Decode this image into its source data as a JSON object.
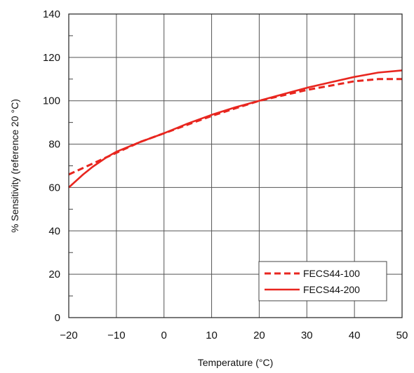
{
  "chart_data": {
    "type": "line",
    "title": "",
    "xlabel": "Temperature (°C)",
    "ylabel": "% Sensitivity (reference 20 °C)",
    "xlim": [
      -20,
      50
    ],
    "ylim": [
      0,
      140
    ],
    "xticks": [
      -20,
      -10,
      0,
      10,
      20,
      30,
      40,
      50
    ],
    "yticks": [
      0,
      20,
      40,
      60,
      80,
      100,
      120,
      140
    ],
    "x_tick_labels": [
      "−20",
      "−10",
      "0",
      "10",
      "20",
      "30",
      "40",
      "50"
    ],
    "y_tick_labels": [
      "0",
      "20",
      "40",
      "60",
      "80",
      "100",
      "120",
      "140"
    ],
    "grid": true,
    "legend_position": "bottom-right",
    "series": [
      {
        "name": "FECS44-100",
        "style": "dashed",
        "color": "#e8261f",
        "x": [
          -20,
          -15,
          -10,
          -5,
          0,
          5,
          10,
          15,
          20,
          25,
          30,
          35,
          40,
          45,
          50
        ],
        "y": [
          66,
          71,
          76,
          81,
          85,
          89,
          93,
          96.5,
          100,
          102.5,
          105,
          107,
          109,
          110,
          110
        ]
      },
      {
        "name": "FECS44-200",
        "style": "solid",
        "color": "#e8261f",
        "x": [
          -20,
          -17,
          -15,
          -12,
          -10,
          -5,
          0,
          5,
          10,
          15,
          20,
          25,
          30,
          35,
          40,
          45,
          50
        ],
        "y": [
          60,
          66,
          69.5,
          74,
          76.5,
          81,
          85,
          89.5,
          93.5,
          97,
          100,
          103,
          106,
          108.5,
          111,
          113,
          114
        ]
      }
    ]
  }
}
